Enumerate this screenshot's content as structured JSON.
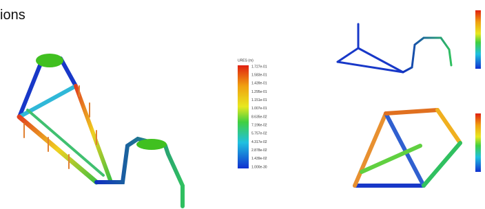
{
  "heading": "ions",
  "legend": {
    "title": "URES (m)",
    "labels": [
      "1.727e-01",
      "1.583e-01",
      "1.439e-01",
      "1.295e-01",
      "1.151e-01",
      "1.007e-01",
      "8.635e-02",
      "7.196e-02",
      "5.757e-02",
      "4.317e-02",
      "2.878e-02",
      "1.439e-02",
      "1.000e-30"
    ]
  }
}
